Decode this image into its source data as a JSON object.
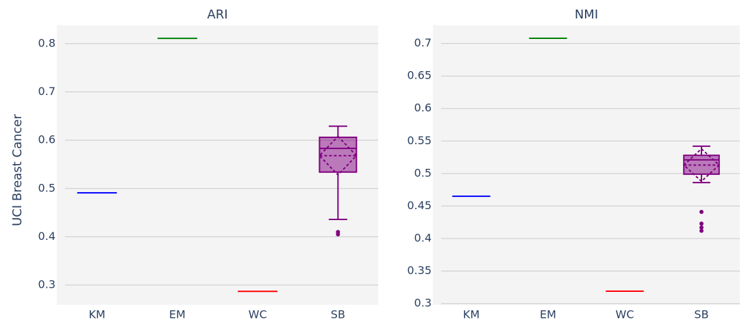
{
  "chart_data": [
    {
      "type": "box",
      "title": "ARI",
      "ylabel": "UCI Breast Cancer",
      "categories": [
        "KM",
        "EM",
        "WC",
        "SB"
      ],
      "colors": [
        "#0000ff",
        "#008000",
        "#ff0000",
        "#800080"
      ],
      "boxes": [
        {
          "median": 0.491
        },
        {
          "median": 0.811
        },
        {
          "median": 0.287
        },
        {
          "min": 0.436,
          "q1": 0.534,
          "median": 0.583,
          "q3": 0.606,
          "max": 0.629,
          "mean": 0.568,
          "sd": 0.04,
          "outliers": [
            0.41,
            0.405
          ]
        }
      ],
      "ylim": [
        0.259,
        0.838
      ],
      "yticks": [
        0.3,
        0.4,
        0.5,
        0.6,
        0.7,
        0.8
      ],
      "grid": true
    },
    {
      "type": "box",
      "title": "NMI",
      "categories": [
        "KM",
        "EM",
        "WC",
        "SB"
      ],
      "colors": [
        "#0000ff",
        "#008000",
        "#ff0000",
        "#800080"
      ],
      "boxes": [
        {
          "median": 0.465
        },
        {
          "median": 0.708
        },
        {
          "median": 0.319
        },
        {
          "min": 0.486,
          "q1": 0.499,
          "median": 0.521,
          "q3": 0.528,
          "max": 0.542,
          "mean": 0.513,
          "sd": 0.025,
          "outliers": [
            0.441,
            0.423,
            0.417,
            0.412
          ]
        }
      ],
      "ylim": [
        0.298,
        0.728
      ],
      "yticks": [
        0.3,
        0.35,
        0.4,
        0.45,
        0.5,
        0.55,
        0.6,
        0.65,
        0.7
      ],
      "grid": true
    }
  ]
}
